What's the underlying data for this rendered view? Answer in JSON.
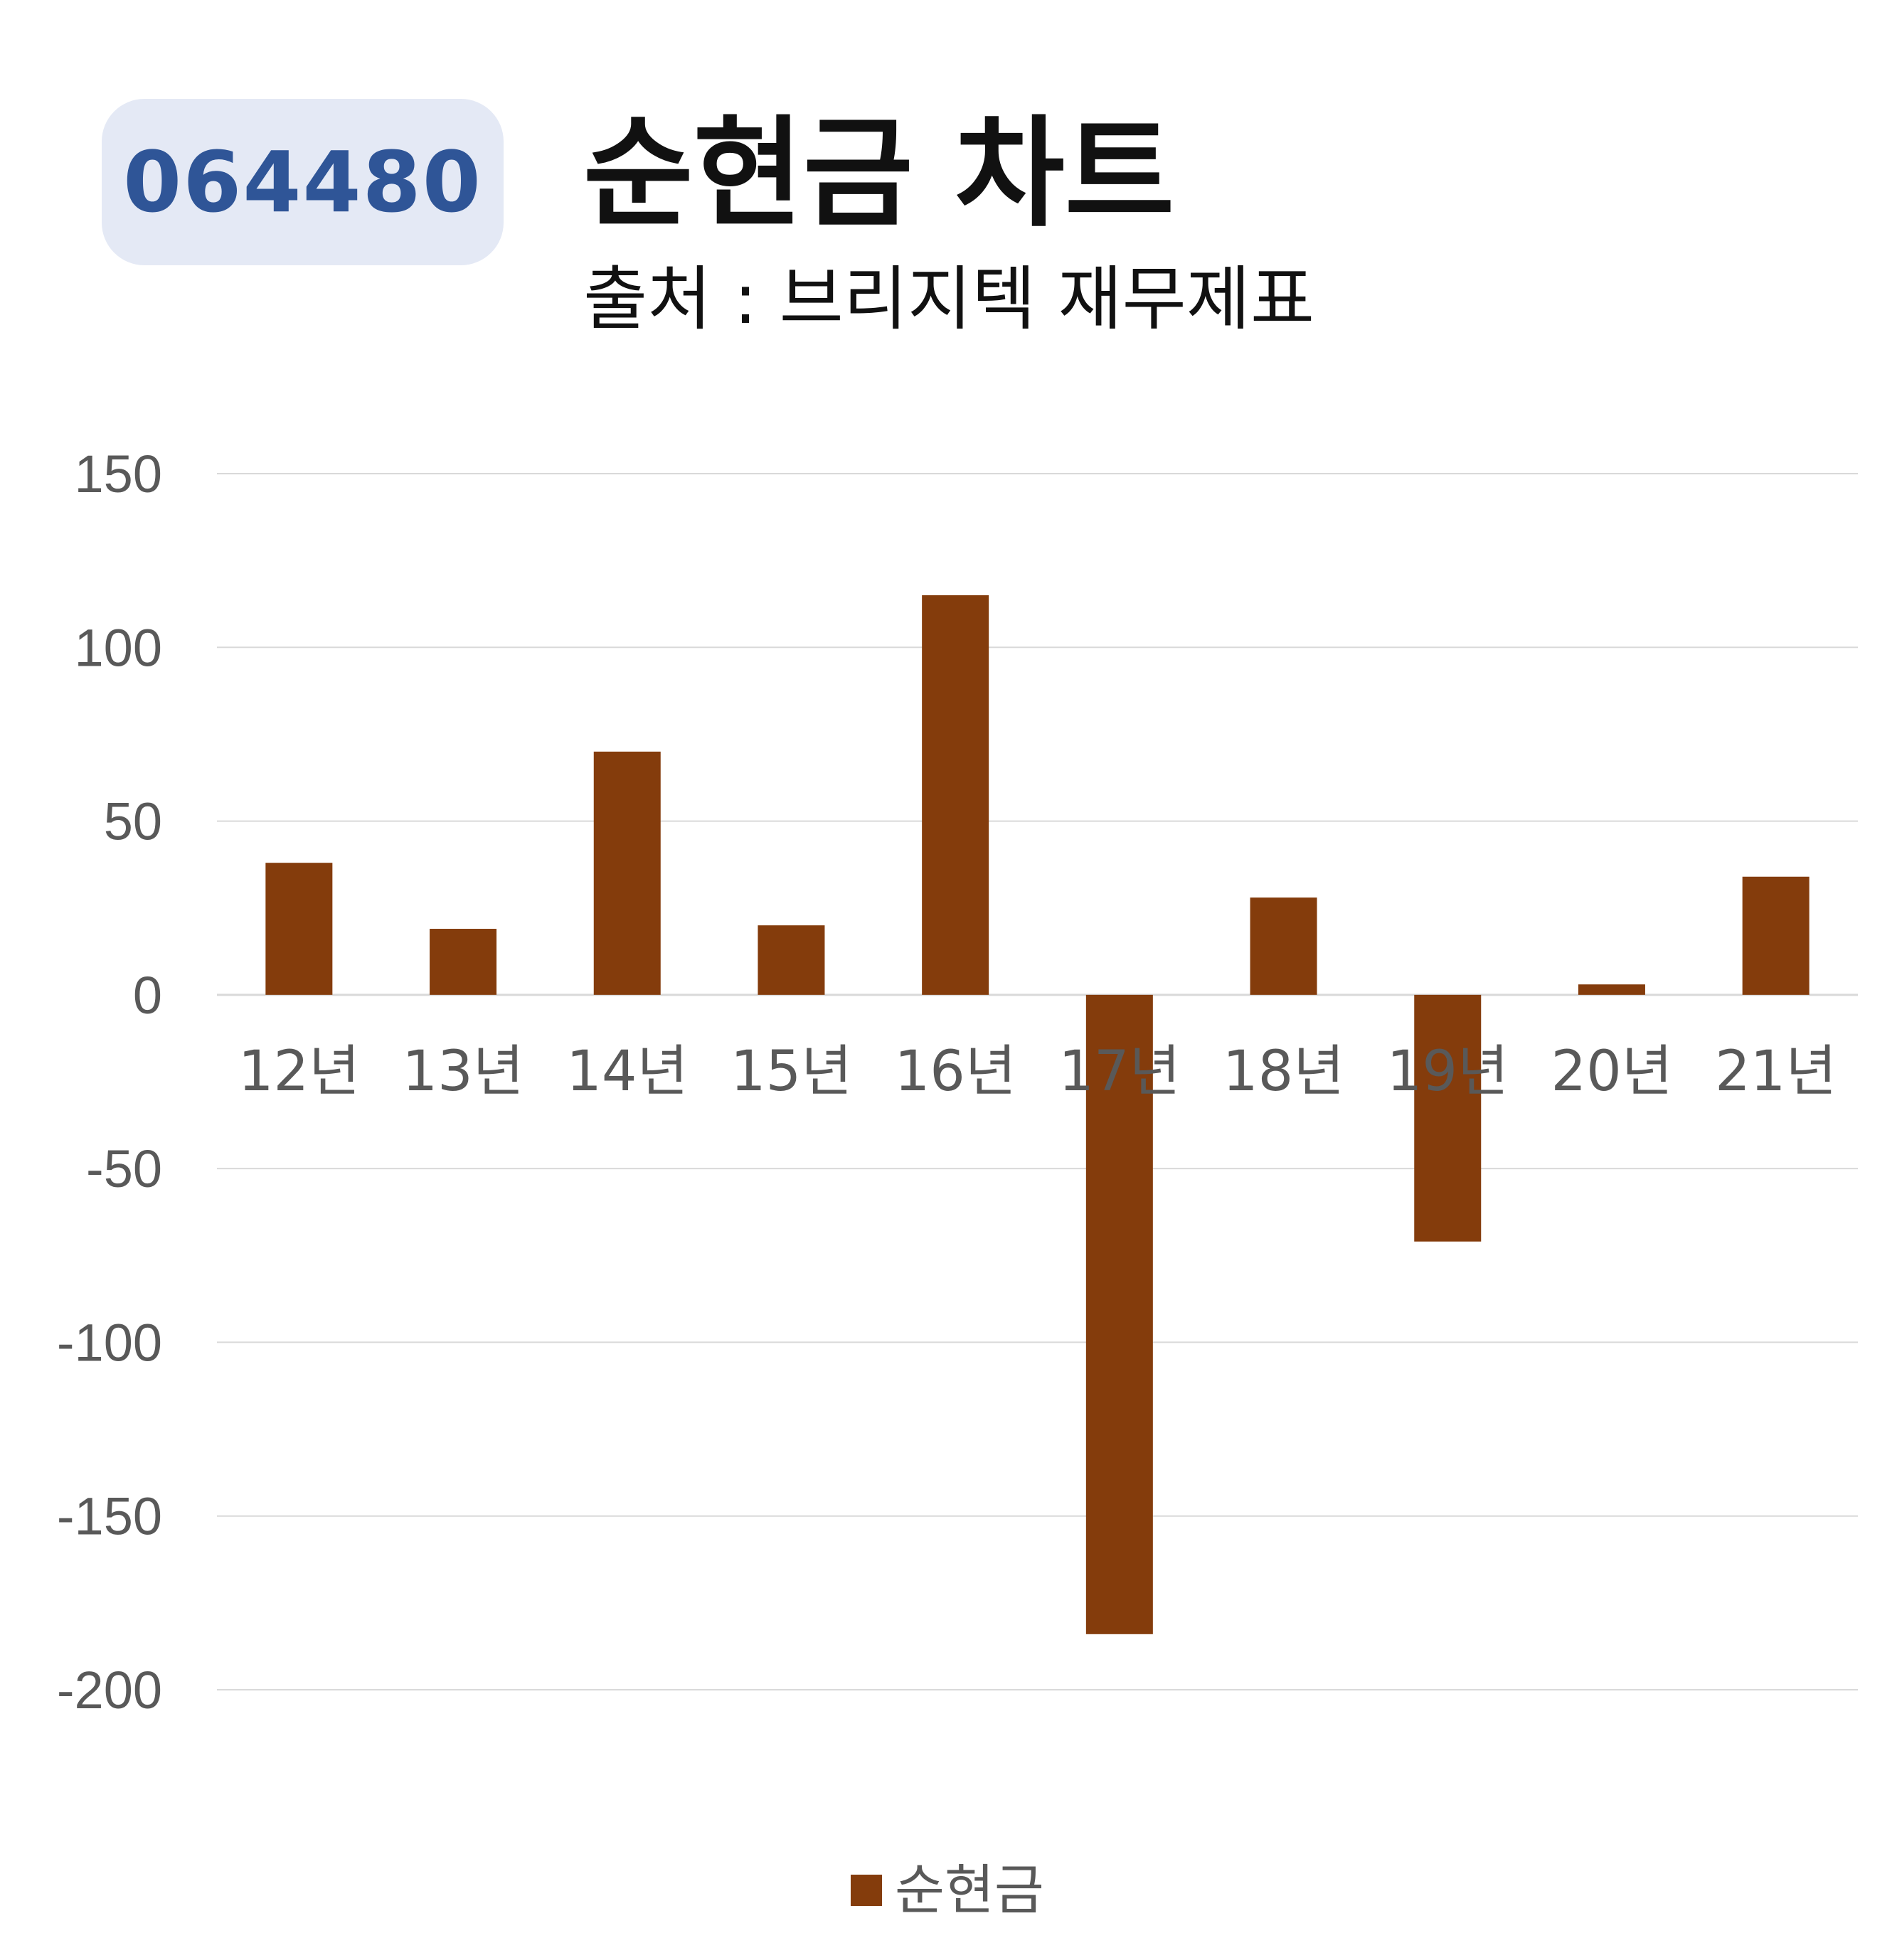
{
  "badge": {
    "code": "064480"
  },
  "header": {
    "title": "순현금 차트",
    "subtitle": "출처 : 브리지텍 재무제표"
  },
  "colors": {
    "bar": "#843c0c",
    "badge_bg": "#e4e9f5",
    "badge_text": "#2f5597",
    "grid": "#d9d9d9",
    "axis_text": "#595959"
  },
  "chart_data": {
    "type": "bar",
    "categories": [
      "12년",
      "13년",
      "14년",
      "15년",
      "16년",
      "17년",
      "18년",
      "19년",
      "20년",
      "21년"
    ],
    "series": [
      {
        "name": "순현금",
        "values": [
          38,
          19,
          70,
          20,
          115,
          -184,
          28,
          -71,
          3,
          34
        ]
      }
    ],
    "yticks": [
      "150",
      "100",
      "50",
      "0",
      "-50",
      "-100",
      "-150",
      "-200"
    ],
    "ylim": [
      -200,
      150
    ],
    "grid": true,
    "legend": "bottom"
  }
}
